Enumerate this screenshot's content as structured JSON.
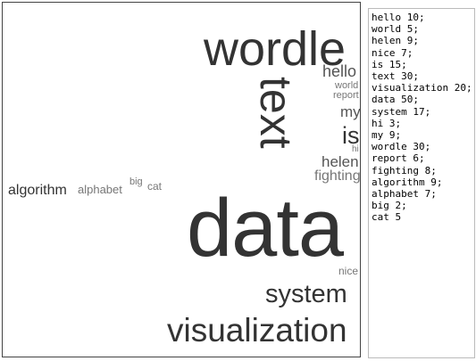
{
  "cloud": {
    "words": {
      "wordle": "wordle",
      "text": "text",
      "hello": "hello",
      "world": "world",
      "report": "report",
      "my": "my",
      "is": "is",
      "hi": "hi",
      "helen": "helen",
      "fighting": "fighting",
      "algorithm": "algorithm",
      "alphabet": "alphabet",
      "big": "big",
      "cat": "cat",
      "data": "data",
      "nice": "nice",
      "system": "system",
      "visualization": "visualization"
    }
  },
  "editor": {
    "lines": [
      "hello 10;",
      "world 5;",
      "helen 9;",
      "nice 7;",
      "is 15;",
      "text 30;",
      "visualization 20;",
      "data 50;",
      "system 17;",
      "hi 3;",
      "my 9;",
      "wordle 30;",
      "report 6;",
      "fighting 8;",
      "algorithm 9;",
      "alphabet 7;",
      "big 2;",
      "cat 5"
    ]
  }
}
